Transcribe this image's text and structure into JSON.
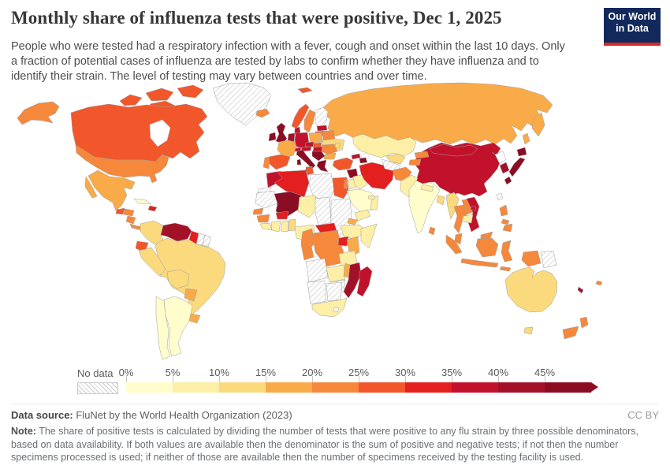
{
  "header": {
    "title": "Monthly share of influenza tests that were positive, Dec 1, 2025",
    "subtitle": "People who were tested had a respiratory infection with a fever, cough and onset within the last 10 days. Only a fraction of potential cases of influenza are tested by labs to confirm whether they have influenza and to identify their strain. The level of testing may vary between countries and over time.",
    "logo": {
      "line1": "Our World",
      "line2": "in Data",
      "bg_color": "#12295c",
      "accent_color": "#d6262c"
    }
  },
  "legend": {
    "no_data_label": "No data",
    "tick_labels": [
      "0%",
      "5%",
      "10%",
      "15%",
      "20%",
      "25%",
      "30%",
      "35%",
      "40%",
      "45%"
    ]
  },
  "footer": {
    "source_label": "Data source:",
    "source_value": " FluNet by the World Health Organization (2023)",
    "license": "CC BY",
    "note_label": "Note:",
    "note_value": " The share of positive tests is calculated by dividing the number of tests that were positive to any flu strain by three possible denominators, based on data availability. If both values are available then the denominator is the sum of positive and negative tests; if not then the number specimens processed is used; if neither of those are available then the number of specimens received by the testing facility is used."
  },
  "chart_data": {
    "type": "choropleth",
    "title": "Monthly share of influenza tests that were positive",
    "date": "Dec 1, 2025",
    "unit": "% of influenza tests positive",
    "legend_position": "bottom",
    "bins": [
      "0-5%",
      "5-10%",
      "10-15%",
      "15-20%",
      "20-25%",
      "25-30%",
      "30-35%",
      "35-40%",
      "40-45%",
      "45%+"
    ],
    "colors": [
      "#FFFDCC",
      "#FDEFA6",
      "#FBD97D",
      "#F9AB49",
      "#F6883B",
      "#F1572B",
      "#E3201F",
      "#C2122B",
      "#A31129",
      "#8B0D23"
    ],
    "no_data": {
      "label": "No data",
      "style": "gray diagonal hatching"
    },
    "region_buckets": {
      "alaska": 4,
      "canada": 5,
      "greenland": -1,
      "united-states": 4,
      "mexico": 3,
      "guatemala": 5,
      "honduras": 4,
      "nicaragua": 4,
      "costa-rica-panama": 4,
      "cuba": 0,
      "hispaniola": 6,
      "trinidad": 7,
      "colombia": 2,
      "venezuela": 8,
      "guyana": 6,
      "suriname": -1,
      "french-guiana": -1,
      "ecuador": 5,
      "peru": 2,
      "brazil": 2,
      "bolivia": 2,
      "paraguay": 3,
      "uruguay": 3,
      "argentina": 0,
      "chile": 0,
      "iceland": 4,
      "svalbard": 5,
      "norway": 5,
      "sweden": 4,
      "finland": -1,
      "latvia": 7,
      "lithuania": 5,
      "denmark": 7,
      "united-kingdom": 9,
      "ireland": 9,
      "benelux": 8,
      "germany": 7,
      "poland": 3,
      "belarus": 4,
      "ukraine": 2,
      "france": 3,
      "spain": 5,
      "portugal": 4,
      "switzerland": 7,
      "czechia": 7,
      "austria": 7,
      "slovakia": 5,
      "hungary": 7,
      "italy": 9,
      "balkans": 9,
      "greece": 9,
      "romania": 4,
      "bulgaria": 3,
      "moldova": 2,
      "morocco": 7,
      "western-sahara": -1,
      "algeria": 6,
      "tunisia": 5,
      "libya": -1,
      "egypt": 5,
      "mauritania": -1,
      "mali": 9,
      "niger": 1,
      "chad": -1,
      "sudan": -1,
      "eritrea": 3,
      "ethiopia": 1,
      "somalia": 1,
      "senegal": 4,
      "guinea": 4,
      "sierra-leone-liberia": 1,
      "ivory-coast": 1,
      "burkina-faso": 6,
      "ghana": 1,
      "togo-benin": 2,
      "nigeria": 1,
      "cameroon": 4,
      "central-african-republic": 6,
      "gabon-congo": 4,
      "dr-congo": 4,
      "uganda": 6,
      "kenya": 3,
      "rwanda-burundi": 4,
      "tanzania": 1,
      "angola": -1,
      "zambia": 1,
      "malawi": 3,
      "mozambique": 8,
      "zimbabwe": -1,
      "namibia": -1,
      "botswana": -1,
      "south-africa": 1,
      "madagascar": 7,
      "russia": 3,
      "kazakhstan": 1,
      "uzbekistan": 2,
      "turkmenistan": -1,
      "kyrgyzstan": 4,
      "tajikistan": 4,
      "afghanistan": 4,
      "pakistan": 1,
      "india": 0,
      "nepal": 1,
      "bangladesh": 2,
      "sri-lanka": 4,
      "myanmar": 2,
      "thailand": 4,
      "laos": 4,
      "cambodia": 1,
      "vietnam": 7,
      "malaysia": 4,
      "indonesia": 4,
      "papua-new-guinea": -1,
      "philippines": 4,
      "taiwan": -1,
      "china": 7,
      "mongolia": 7,
      "north-korea": -2,
      "south-korea": 8,
      "japan": 9,
      "turkey": 5,
      "syria": 9,
      "israel": 4,
      "jordan": 1,
      "iraq": 1,
      "iran": 6,
      "georgia": 7,
      "azerbaijan-armenia": 9,
      "saudi-arabia": 0,
      "yemen": 1,
      "oman": 1,
      "uae": 1,
      "australia": 2,
      "new-zealand": 4,
      "new-caledonia": 8,
      "fiji": 4
    }
  }
}
